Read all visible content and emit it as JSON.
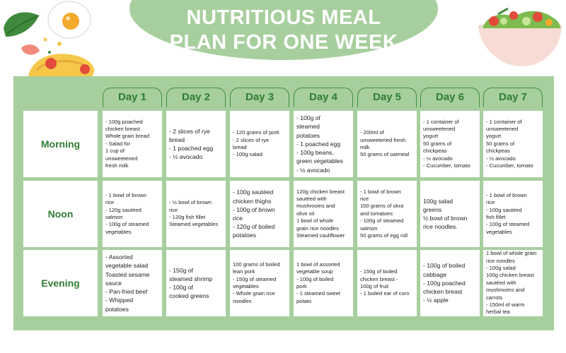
{
  "title": {
    "line1": "NUTRITIOUS MEAL",
    "line2": "PLAN FOR ONE WEEK"
  },
  "colors": {
    "panel": "#a7cf9e",
    "heading": "#2f7d32",
    "cell": "#ffffff",
    "text": "#222222"
  },
  "decorations": {
    "left": "egg-and-vegetables-illustration",
    "right": "salad-bowl-illustration"
  },
  "days": [
    "Day 1",
    "Day 2",
    "Day 3",
    "Day 4",
    "Day 5",
    "Day 6",
    "Day 7"
  ],
  "meals": [
    "Morning",
    "Noon",
    "Evening"
  ],
  "plan": [
    [
      "- 100g poached\nchicken breast\nWhole grain bread\n- Salad for\n1 cup of\nunsweetened\nfresh milk",
      "- 2 slices of rye\nbread\n- 1 poached egg\n- ½ avocado",
      "- 120 grams of pork\n- 2 slices of rye\nbread\n- 100g salad",
      "- 100g of\nsteamed\npotatoes\n- 1 poached egg\n- 100g beans,\ngreen vegetables\n- ½ avocado",
      "- 200ml of\nunsweetened fresh\nmilk\n50 grams of oatmeal",
      "- 1 container of\nunsweetened\nyogurt\n50 grams of\nchickpeas\n- ½ avocado\n- Cucumber, tomato",
      "- 1 container of\nunsweetened\nyogurt\n50 grams of\nchickpeas\n- ½ avocado\n- Cucumber, tomato"
    ],
    [
      "- 1 bowl of brown\nrice\n- 120g sautéed\nsalmon\n- 100g of steamed\nvegetables",
      "- ½ bowl of brown\nrice\n- 120g fish fillet\nSteamed vegetables",
      "- 100g sautéed\nchicken thighs\n- 100g of brown\nrice\n- 120g of boiled\npotatoes",
      "120g chicken breast\nsautéed with\nmushrooms and\nolive oil\n1 bowl of whole\ngrain rice noodles\nSteamed cauliflower",
      "- 1 bowl of brown\nrice\n100 grams of okra\nand tomatoes\n- 100g of steamed\nsalmon\n50 grams of egg roll",
      "100g salad\ngreens\n½ bowl of brown\nrice noodles.",
      "- 1 bowl of brown\nrice\n- 100g sautéed\nfish fillet\n- 100g of steamed\nvegetables"
    ],
    [
      "- Assorted\nvegetable salad\nToasted sesame\nsauce\n- Pan-fried beef\n- Whipped\npotatoes",
      "- 150g of\nsteamed shrimp\n- 100g of\ncooked greens",
      "100 grams of boiled\nlean pork\n- 150g of steamed\nvegetables\n- Whole grain rice\nnoodles",
      "1 bowl of assorted\nvegetable soup\n- 100g of boiled\npork\n- 1 steamed sweet\npotato",
      "- 150g of boiled\nchicken breast -\n100g of fruit\n- 1 boiled ear of corn",
      "- 100g of boiled\ncabbage\n- 100g poached\nchicken breast\n- ½ apple",
      "1 bowl of whole grain\nrice noodles\n- 100g salad\n100g chicken breast\nsautéed with\nmushrooms and carrots\n- 150ml of warm\nherbal tea"
    ]
  ]
}
